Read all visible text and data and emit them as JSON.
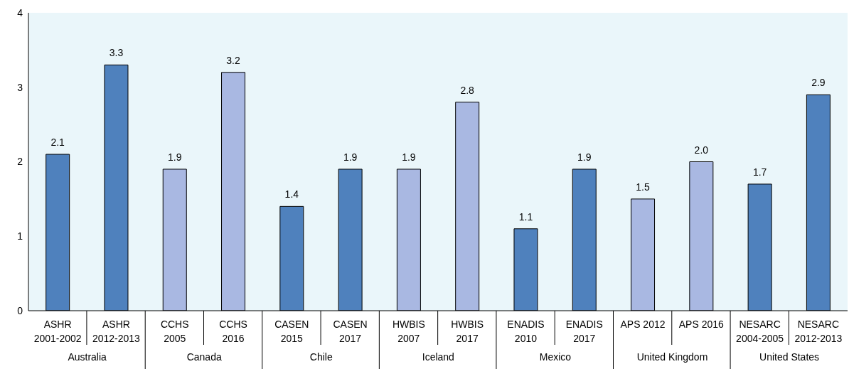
{
  "chart_data": {
    "type": "bar",
    "categories": [
      "ASHR 2001-2002",
      "ASHR 2012-2013",
      "CCHS 2005",
      "CCHS 2016",
      "CASEN 2015",
      "CASEN 2017",
      "HWBIS 2007",
      "HWBIS 2017",
      "ENADIS 2010",
      "ENADIS 2017",
      "APS 2012",
      "APS 2016",
      "NESARC 2004-2005",
      "NESARC 2012-2013"
    ],
    "values": [
      2.1,
      3.3,
      1.9,
      3.2,
      1.4,
      1.9,
      1.9,
      2.8,
      1.1,
      1.9,
      1.5,
      2.0,
      1.7,
      2.9
    ],
    "colors": [
      "#4f81bd",
      "#4f81bd",
      "#a9b8e2",
      "#a9b8e2",
      "#4f81bd",
      "#4f81bd",
      "#a9b8e2",
      "#a9b8e2",
      "#4f81bd",
      "#4f81bd",
      "#a9b8e2",
      "#a9b8e2",
      "#4f81bd",
      "#4f81bd"
    ],
    "value_labels": [
      "2.1",
      "3.3",
      "1.9",
      "3.2",
      "1.4",
      "1.9",
      "1.9",
      "2.8",
      "1.1",
      "1.9",
      "1.5",
      "2.0",
      "1.7",
      "2.9"
    ],
    "annotations": [
      "Australia",
      "Canada",
      "Chile",
      "Iceland",
      "Mexico",
      "United Kingdom",
      "United States"
    ],
    "ylim": [
      0,
      4
    ],
    "yticks": [
      0,
      1,
      2,
      3,
      4
    ]
  }
}
